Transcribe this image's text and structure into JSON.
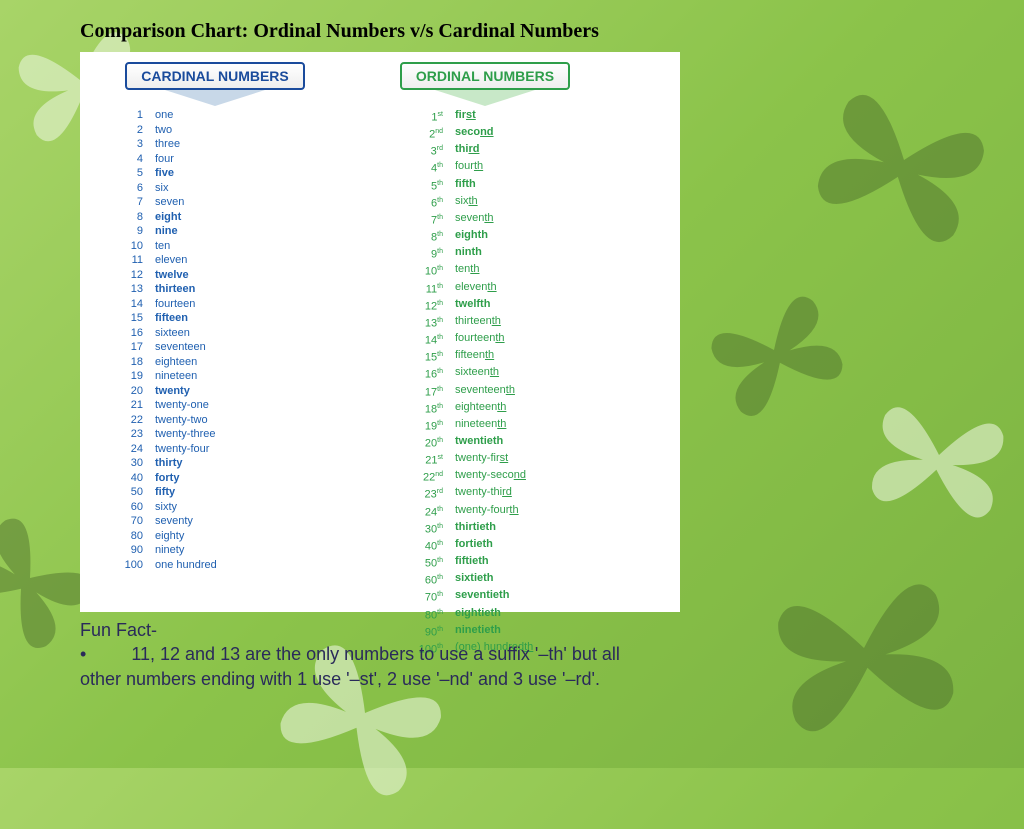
{
  "title": "Comparison Chart: Ordinal Numbers v/s Cardinal Numbers",
  "headers": {
    "cardinal": "CARDINAL NUMBERS",
    "ordinal": "ORDINAL NUMBERS"
  },
  "colors": {
    "cardinal": "#2060b0",
    "ordinal": "#2e9e4a",
    "background_start": "#a8d468",
    "background_end": "#7cb342",
    "funfact_text": "#2a2a5a"
  },
  "rows": [
    {
      "cn": "1",
      "cw": "one",
      "cb": false,
      "on": "1",
      "os": "st",
      "ow": "fir",
      "ou": "st",
      "ob": true
    },
    {
      "cn": "2",
      "cw": "two",
      "cb": false,
      "on": "2",
      "os": "nd",
      "ow": "seco",
      "ou": "nd",
      "ob": true
    },
    {
      "cn": "3",
      "cw": "three",
      "cb": false,
      "on": "3",
      "os": "rd",
      "ow": "thi",
      "ou": "rd",
      "ob": true
    },
    {
      "cn": "4",
      "cw": "four",
      "cb": false,
      "on": "4",
      "os": "th",
      "ow": "four",
      "ou": "th",
      "ob": false
    },
    {
      "cn": "5",
      "cw": "five",
      "cb": true,
      "on": "5",
      "os": "th",
      "ow": "fifth",
      "ou": "",
      "ob": true
    },
    {
      "cn": "6",
      "cw": "six",
      "cb": false,
      "on": "6",
      "os": "th",
      "ow": "six",
      "ou": "th",
      "ob": false
    },
    {
      "cn": "7",
      "cw": "seven",
      "cb": false,
      "on": "7",
      "os": "th",
      "ow": "seven",
      "ou": "th",
      "ob": false
    },
    {
      "cn": "8",
      "cw": "eight",
      "cb": true,
      "on": "8",
      "os": "th",
      "ow": "eighth",
      "ou": "",
      "ob": true
    },
    {
      "cn": "9",
      "cw": "nine",
      "cb": true,
      "on": "9",
      "os": "th",
      "ow": "ninth",
      "ou": "",
      "ob": true
    },
    {
      "cn": "10",
      "cw": "ten",
      "cb": false,
      "on": "10",
      "os": "th",
      "ow": "ten",
      "ou": "th",
      "ob": false
    },
    {
      "cn": "11",
      "cw": "eleven",
      "cb": false,
      "on": "11",
      "os": "th",
      "ow": "eleven",
      "ou": "th",
      "ob": false
    },
    {
      "cn": "12",
      "cw": "twelve",
      "cb": true,
      "on": "12",
      "os": "th",
      "ow": "twelfth",
      "ou": "",
      "ob": true
    },
    {
      "cn": "13",
      "cw": "thirteen",
      "cb": true,
      "on": "13",
      "os": "th",
      "ow": "thirteen",
      "ou": "th",
      "ob": false
    },
    {
      "cn": "14",
      "cw": "fourteen",
      "cb": false,
      "on": "14",
      "os": "th",
      "ow": "fourteen",
      "ou": "th",
      "ob": false
    },
    {
      "cn": "15",
      "cw": "fifteen",
      "cb": true,
      "on": "15",
      "os": "th",
      "ow": "fifteen",
      "ou": "th",
      "ob": false
    },
    {
      "cn": "16",
      "cw": "sixteen",
      "cb": false,
      "on": "16",
      "os": "th",
      "ow": "sixteen",
      "ou": "th",
      "ob": false
    },
    {
      "cn": "17",
      "cw": "seventeen",
      "cb": false,
      "on": "17",
      "os": "th",
      "ow": "seventeen",
      "ou": "th",
      "ob": false
    },
    {
      "cn": "18",
      "cw": "eighteen",
      "cb": false,
      "on": "18",
      "os": "th",
      "ow": "eighteen",
      "ou": "th",
      "ob": false
    },
    {
      "cn": "19",
      "cw": "nineteen",
      "cb": false,
      "on": "19",
      "os": "th",
      "ow": "nineteen",
      "ou": "th",
      "ob": false
    },
    {
      "cn": "20",
      "cw": "twenty",
      "cb": true,
      "on": "20",
      "os": "th",
      "ow": "twentieth",
      "ou": "",
      "ob": true
    },
    {
      "cn": "21",
      "cw": "twenty-one",
      "cb": false,
      "on": "21",
      "os": "st",
      "ow": "twenty-fir",
      "ou": "st",
      "ob": false
    },
    {
      "cn": "22",
      "cw": "twenty-two",
      "cb": false,
      "on": "22",
      "os": "nd",
      "ow": "twenty-seco",
      "ou": "nd",
      "ob": false
    },
    {
      "cn": "23",
      "cw": "twenty-three",
      "cb": false,
      "on": "23",
      "os": "rd",
      "ow": "twenty-thi",
      "ou": "rd",
      "ob": false
    },
    {
      "cn": "24",
      "cw": "twenty-four",
      "cb": false,
      "on": "24",
      "os": "th",
      "ow": "twenty-four",
      "ou": "th",
      "ob": false
    },
    {
      "cn": "30",
      "cw": "thirty",
      "cb": true,
      "on": "30",
      "os": "th",
      "ow": "thirtieth",
      "ou": "",
      "ob": true
    },
    {
      "cn": "40",
      "cw": "forty",
      "cb": true,
      "on": "40",
      "os": "th",
      "ow": "fortieth",
      "ou": "",
      "ob": true
    },
    {
      "cn": "50",
      "cw": "fifty",
      "cb": true,
      "on": "50",
      "os": "th",
      "ow": "fiftieth",
      "ou": "",
      "ob": true
    },
    {
      "cn": "60",
      "cw": "sixty",
      "cb": false,
      "on": "60",
      "os": "th",
      "ow": "sixtieth",
      "ou": "",
      "ob": true
    },
    {
      "cn": "70",
      "cw": "seventy",
      "cb": false,
      "on": "70",
      "os": "th",
      "ow": "seventieth",
      "ou": "",
      "ob": true
    },
    {
      "cn": "80",
      "cw": "eighty",
      "cb": false,
      "on": "80",
      "os": "th",
      "ow": "eightieth",
      "ou": "",
      "ob": true
    },
    {
      "cn": "90",
      "cw": "ninety",
      "cb": false,
      "on": "90",
      "os": "th",
      "ow": "ninetieth",
      "ou": "",
      "ob": true
    },
    {
      "cn": "100",
      "cw": "one hundred",
      "cb": false,
      "on": "100",
      "os": "th",
      "ow": "(one) hundred",
      "ou": "th",
      "ob": false
    }
  ],
  "funfact": {
    "heading": "Fun Fact-",
    "bullet": "•",
    "text": "11, 12 and 13 are the only numbers to use a suffix '–th' but all other numbers ending with 1 use '–st', 2 use '–nd' and 3 use '–rd'."
  }
}
